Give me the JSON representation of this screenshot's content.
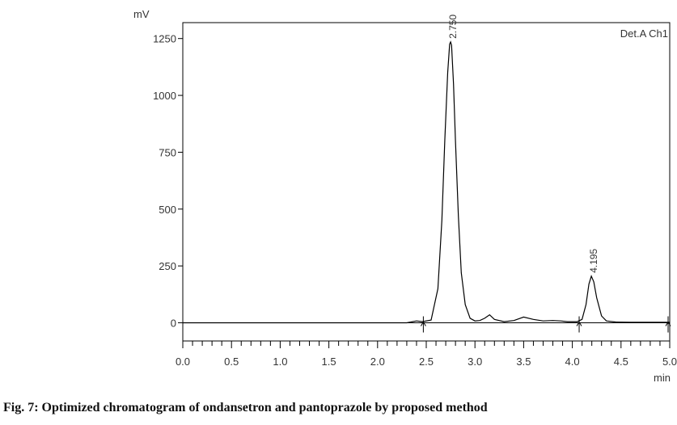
{
  "caption": "Fig. 7: Optimized chromatogram of ondansetron and pantoprazole by proposed method",
  "chart_data": {
    "type": "line",
    "ylabel": "mV",
    "xlabel": "min",
    "detector_label": "Det.A Ch1",
    "xlim": [
      0.0,
      5.0
    ],
    "ylim": [
      -80,
      1320
    ],
    "x_ticks": [
      0.0,
      0.5,
      1.0,
      1.5,
      2.0,
      2.5,
      3.0,
      3.5,
      4.0,
      4.5,
      5.0
    ],
    "x_tick_labels": [
      "0.0",
      "0.5",
      "1.0",
      "1.5",
      "2.0",
      "2.5",
      "3.0",
      "3.5",
      "4.0",
      "4.5",
      "5.0"
    ],
    "y_ticks": [
      0,
      250,
      500,
      750,
      1000,
      1250
    ],
    "y_tick_labels": [
      "0",
      "250",
      "500",
      "750",
      "1000",
      "1250"
    ],
    "peaks": [
      {
        "label": "2.750",
        "retention_time": 2.75,
        "height": 1235
      },
      {
        "label": "4.195",
        "retention_time": 4.195,
        "height": 205
      }
    ],
    "integration_markers_x": [
      2.47,
      4.07,
      5.0
    ],
    "series": [
      {
        "color": "#000000",
        "x": [
          0.0,
          2.3,
          2.4,
          2.46,
          2.55,
          2.62,
          2.66,
          2.69,
          2.72,
          2.74,
          2.75,
          2.76,
          2.78,
          2.8,
          2.83,
          2.86,
          2.9,
          2.95,
          3.0,
          3.05,
          3.1,
          3.15,
          3.2,
          3.3,
          3.4,
          3.5,
          3.6,
          3.7,
          3.8,
          3.88,
          3.95,
          4.05,
          4.1,
          4.14,
          4.17,
          4.195,
          4.22,
          4.25,
          4.3,
          4.35,
          4.45,
          4.6,
          4.8,
          5.0
        ],
        "y": [
          0,
          0,
          8,
          5,
          12,
          150,
          450,
          800,
          1100,
          1225,
          1235,
          1220,
          1050,
          800,
          470,
          220,
          80,
          20,
          8,
          10,
          20,
          35,
          15,
          5,
          10,
          25,
          15,
          8,
          10,
          8,
          5,
          5,
          15,
          80,
          170,
          205,
          180,
          110,
          30,
          8,
          3,
          2,
          2,
          2
        ]
      }
    ],
    "grid": false,
    "legend": "none"
  }
}
